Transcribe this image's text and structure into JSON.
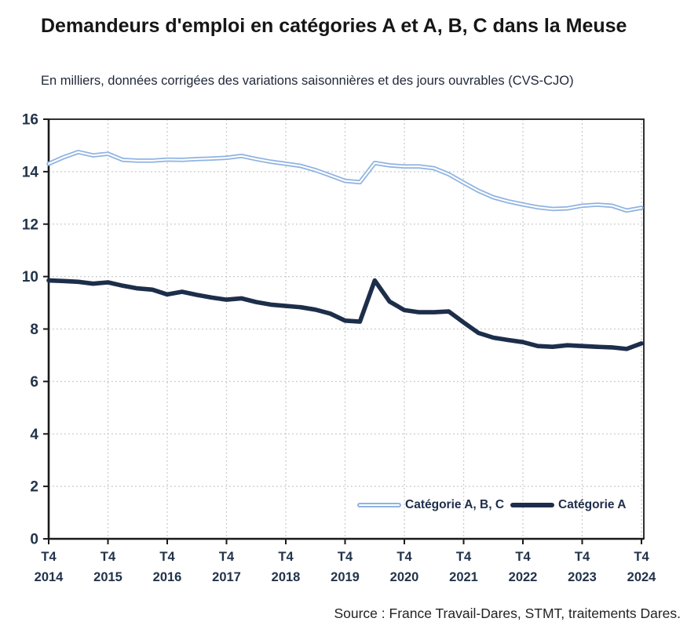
{
  "header": {
    "title": "Demandeurs d'emploi en catégories A et A, B, C dans la Meuse",
    "subtitle": "En milliers, données corrigées des variations saisonnières et des jours ouvrables (CVS-CJO)"
  },
  "footer": {
    "source": "Source : France Travail-Dares, STMT, traitements Dares."
  },
  "colors": {
    "category_abc_line": "#8fb3e2",
    "category_a_line": "#1d2e4a",
    "axis": "#1a1a1a",
    "gridline": "#c6c6c6",
    "tick_label": "#22334a"
  },
  "chart_data": {
    "type": "line",
    "title": "Demandeurs d'emploi en catégories A et A, B, C dans la Meuse",
    "subtitle": "En milliers, données corrigées des variations saisonnières et des jours ouvrables (CVS-CJO)",
    "x_frequency": "quarterly",
    "x_tick_quarter": "T4",
    "x_tick_years": [
      "2014",
      "2015",
      "2016",
      "2017",
      "2018",
      "2019",
      "2020",
      "2021",
      "2022",
      "2023",
      "2024"
    ],
    "x_range_note": "41 quarterly points from T4 2014 to T4 2024",
    "ylim": [
      0,
      16
    ],
    "y_ticks": [
      0,
      2,
      4,
      6,
      8,
      10,
      12,
      14,
      16
    ],
    "grid": true,
    "legend_position": "inside-bottom",
    "series": [
      {
        "name": "Catégorie A, B, C",
        "color": "#8fb3e2",
        "line_style": "outlined-double",
        "values": [
          14.3,
          14.55,
          14.75,
          14.62,
          14.68,
          14.45,
          14.42,
          14.42,
          14.46,
          14.45,
          14.48,
          14.5,
          14.53,
          14.6,
          14.48,
          14.38,
          14.3,
          14.22,
          14.06,
          13.86,
          13.65,
          13.6,
          14.33,
          14.24,
          14.2,
          14.2,
          14.13,
          13.9,
          13.58,
          13.27,
          13.02,
          12.87,
          12.75,
          12.64,
          12.58,
          12.6,
          12.7,
          12.74,
          12.7,
          12.52,
          12.62
        ]
      },
      {
        "name": "Catégorie A",
        "color": "#1d2e4a",
        "line_style": "solid",
        "values": [
          9.85,
          9.83,
          9.8,
          9.73,
          9.78,
          9.65,
          9.55,
          9.5,
          9.32,
          9.42,
          9.3,
          9.2,
          9.12,
          9.17,
          9.03,
          8.93,
          8.88,
          8.83,
          8.74,
          8.59,
          8.32,
          8.28,
          9.85,
          9.05,
          8.72,
          8.64,
          8.64,
          8.67,
          8.25,
          7.85,
          7.67,
          7.58,
          7.5,
          7.35,
          7.32,
          7.38,
          7.35,
          7.32,
          7.3,
          7.24,
          7.45
        ]
      }
    ]
  }
}
